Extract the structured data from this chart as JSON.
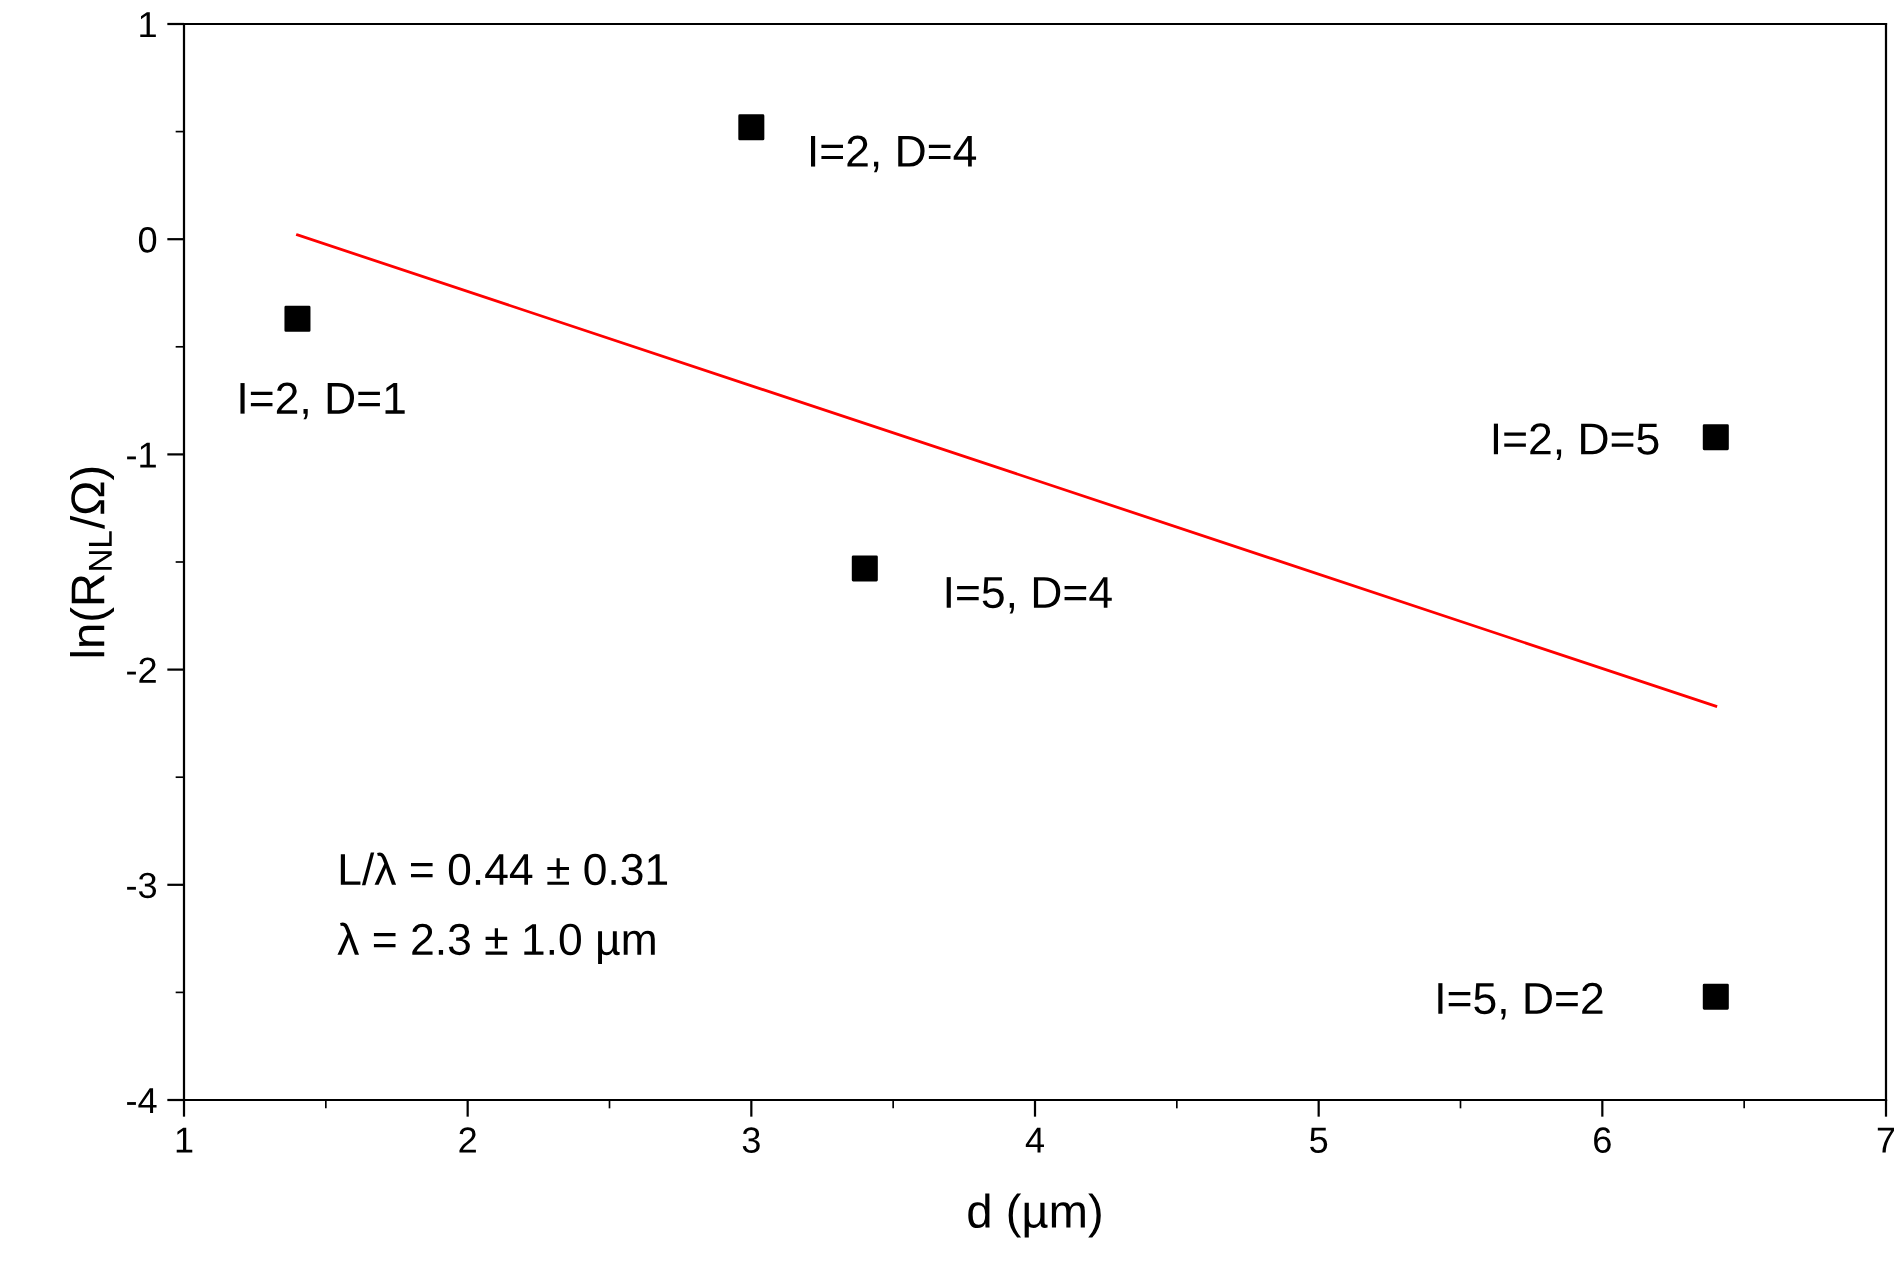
{
  "chart_data": {
    "type": "scatter",
    "xlabel": "d (µm)",
    "ylabel": "ln(R$_{NL}$/Ω)",
    "xlim": [
      1,
      7
    ],
    "xticks": [
      1,
      2,
      3,
      4,
      5,
      6,
      7
    ],
    "ylim": [
      -4,
      1
    ],
    "yticks": [
      -4,
      -3,
      -2,
      -1,
      0,
      1
    ],
    "grid": false,
    "legend": false,
    "series": [
      {
        "color": "#000000",
        "marker": "square",
        "x": [
          1.4,
          3.0,
          3.4,
          6.4,
          6.4
        ],
        "values": [
          -0.37,
          0.52,
          -1.53,
          -0.92,
          -3.52
        ]
      },
      {
        "type": "line",
        "color": "#ff0000",
        "line_style": "solid",
        "marker": "none",
        "x": [
          1.4,
          6.4
        ],
        "values": [
          0.02,
          -2.17
        ]
      }
    ],
    "annotations": [
      {
        "text": "I=2, D=1",
        "x": 1.4,
        "y": -0.37
      },
      {
        "text": "I=2, D=4",
        "x": 3.0,
        "y": 0.52
      },
      {
        "text": "I=5, D=4",
        "x": 3.4,
        "y": -1.53
      },
      {
        "text": "I=2, D=5",
        "x": 6.4,
        "y": -0.92
      },
      {
        "text": "I=5, D=2",
        "x": 6.4,
        "y": -3.52
      },
      "L/λ = 0.44 ± 0.31",
      "λ = 2.3 ± 1.0 µm"
    ]
  }
}
